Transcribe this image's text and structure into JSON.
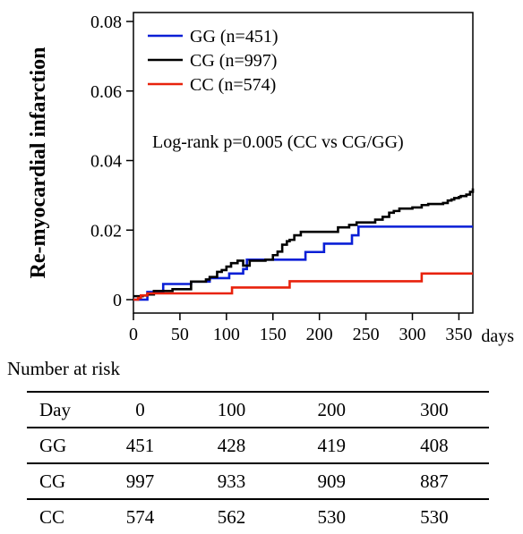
{
  "chart_data": {
    "type": "line",
    "ylabel": "Re-myocardial infarction",
    "xlabel": "days",
    "xlim": [
      0,
      365
    ],
    "ylim": [
      0,
      0.08
    ],
    "x_ticks": [
      0,
      50,
      100,
      150,
      200,
      250,
      300,
      350
    ],
    "y_ticks": [
      0,
      0.02,
      0.04,
      0.06,
      0.08
    ],
    "y_tick_labels": [
      "0",
      "0.02",
      "0.04",
      "0.06",
      "0.08"
    ],
    "annotation": "Log-rank p=0.005 (CC vs CG/GG)",
    "legend_position": "top-left",
    "series": [
      {
        "name": "GG (n=451)",
        "color": "#0a1fd6",
        "x": [
          0,
          15,
          32,
          62,
          82,
          103,
          118,
          122,
          150,
          185,
          205,
          235,
          242,
          365
        ],
        "y": [
          0,
          0.0022,
          0.0045,
          0.0052,
          0.0062,
          0.0075,
          0.0088,
          0.0115,
          0.0115,
          0.0137,
          0.0161,
          0.0185,
          0.021,
          0.021
        ]
      },
      {
        "name": "CG (n=997)",
        "color": "#000000",
        "x": [
          0,
          10,
          15,
          22,
          42,
          62,
          78,
          82,
          90,
          95,
          100,
          105,
          110,
          112,
          118,
          125,
          130,
          142,
          150,
          155,
          160,
          165,
          168,
          173,
          180,
          205,
          220,
          232,
          240,
          250,
          260,
          268,
          275,
          280,
          286,
          300,
          310,
          317,
          333,
          338,
          342,
          345,
          350,
          352,
          358,
          362,
          365
        ],
        "y": [
          0.001,
          0.0012,
          0.0015,
          0.0025,
          0.003,
          0.0052,
          0.0058,
          0.0065,
          0.008,
          0.0085,
          0.0095,
          0.0105,
          0.0105,
          0.0112,
          0.0098,
          0.0112,
          0.0112,
          0.0115,
          0.0128,
          0.0138,
          0.0158,
          0.0168,
          0.0172,
          0.0185,
          0.0195,
          0.0195,
          0.0208,
          0.0215,
          0.0222,
          0.0222,
          0.023,
          0.0238,
          0.025,
          0.0255,
          0.0262,
          0.0265,
          0.0272,
          0.0275,
          0.0278,
          0.0285,
          0.0288,
          0.0292,
          0.0295,
          0.0298,
          0.0302,
          0.031,
          0.032
        ]
      },
      {
        "name": "CC (n=574)",
        "color": "#e8220c",
        "x": [
          0,
          5,
          8,
          15,
          32,
          106,
          168,
          310,
          365
        ],
        "y": [
          0,
          0.0005,
          0.0012,
          0.0018,
          0.0018,
          0.0035,
          0.0053,
          0.0075,
          0.0075
        ]
      }
    ]
  },
  "risk_table": {
    "title": "Number at risk",
    "header": [
      "Day",
      "0",
      "100",
      "200",
      "300"
    ],
    "rows": [
      [
        "GG",
        "451",
        "428",
        "419",
        "408"
      ],
      [
        "CG",
        "997",
        "933",
        "909",
        "887"
      ],
      [
        "CC",
        "574",
        "562",
        "530",
        "530"
      ]
    ]
  }
}
